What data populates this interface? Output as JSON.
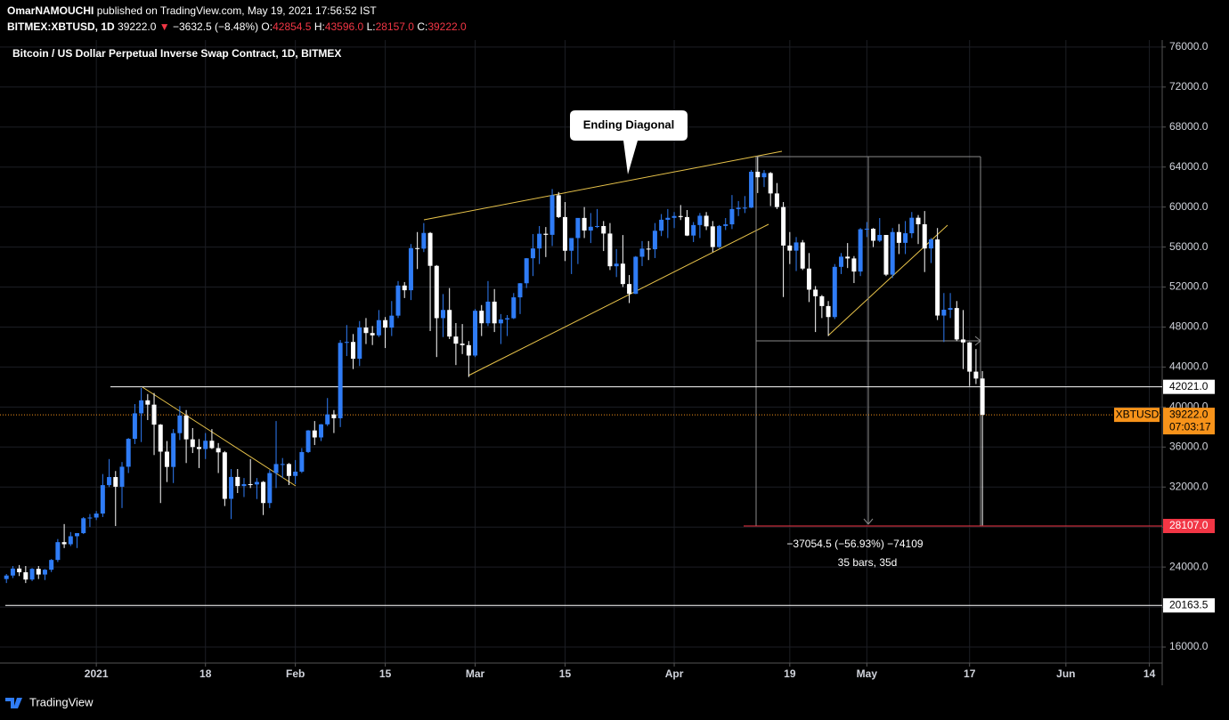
{
  "header": {
    "author": "OmarNAMOUCHI",
    "published": "published on TradingView.com, May 19, 2021 17:56:52 IST",
    "symbol": "BITMEX:XBTUSD, 1D",
    "last": "39222.0",
    "arrow": "▼",
    "change": "−3632.5 (−8.48%)",
    "o_label": "O:",
    "o_value": "42854.5",
    "h_label": "H:",
    "h_value": "43596.0",
    "l_label": "L:",
    "l_value": "28157.0",
    "c_label": "C:",
    "c_value": "39222.0"
  },
  "chart_data": {
    "type": "candlestick",
    "title": "Bitcoin / US Dollar Perpetual Inverse Swap Contract, 1D, BITMEX",
    "up_color": "#2f7cf6",
    "down_color": "#ffffff",
    "grid": true,
    "ylim": [
      14400,
      76700
    ],
    "yticks": [
      {
        "value": 16000,
        "label": "16000.0"
      },
      {
        "value": 20000,
        "label": "20000.0"
      },
      {
        "value": 24000,
        "label": "24000.0"
      },
      {
        "value": 28000,
        "label": "28000.0"
      },
      {
        "value": 32000,
        "label": "32000.0"
      },
      {
        "value": 36000,
        "label": "36000.0"
      },
      {
        "value": 40000,
        "label": "40000.0"
      },
      {
        "value": 44000,
        "label": "44000.0"
      },
      {
        "value": 48000,
        "label": "48000.0"
      },
      {
        "value": 52000,
        "label": "52000.0"
      },
      {
        "value": 56000,
        "label": "56000.0"
      },
      {
        "value": 60000,
        "label": "60000.0"
      },
      {
        "value": 64000,
        "label": "64000.0"
      },
      {
        "value": 68000,
        "label": "68000.0"
      },
      {
        "value": 72000,
        "label": "72000.0"
      },
      {
        "value": 76000,
        "label": "76000.0"
      }
    ],
    "xlim": [
      "2020-12-17",
      "2021-06-16"
    ],
    "xticks": [
      {
        "value": "2021-01-01",
        "label": "2021"
      },
      {
        "value": "2021-01-18",
        "label": "18"
      },
      {
        "value": "2021-02-01",
        "label": "Feb"
      },
      {
        "value": "2021-02-15",
        "label": "15"
      },
      {
        "value": "2021-03-01",
        "label": "Mar"
      },
      {
        "value": "2021-03-15",
        "label": "15"
      },
      {
        "value": "2021-04-01",
        "label": "Apr"
      },
      {
        "value": "2021-04-19",
        "label": "19"
      },
      {
        "value": "2021-05-01",
        "label": "May"
      },
      {
        "value": "2021-05-17",
        "label": "17"
      },
      {
        "value": "2021-06-01",
        "label": "Jun"
      },
      {
        "value": "2021-06-14",
        "label": "14"
      }
    ],
    "x": [
      "2020-12-18",
      "2020-12-19",
      "2020-12-20",
      "2020-12-21",
      "2020-12-22",
      "2020-12-23",
      "2020-12-24",
      "2020-12-25",
      "2020-12-26",
      "2020-12-27",
      "2020-12-28",
      "2020-12-29",
      "2020-12-30",
      "2020-12-31",
      "2021-01-01",
      "2021-01-02",
      "2021-01-03",
      "2021-01-04",
      "2021-01-05",
      "2021-01-06",
      "2021-01-07",
      "2021-01-08",
      "2021-01-09",
      "2021-01-10",
      "2021-01-11",
      "2021-01-12",
      "2021-01-13",
      "2021-01-14",
      "2021-01-15",
      "2021-01-16",
      "2021-01-17",
      "2021-01-18",
      "2021-01-19",
      "2021-01-20",
      "2021-01-21",
      "2021-01-22",
      "2021-01-23",
      "2021-01-24",
      "2021-01-25",
      "2021-01-26",
      "2021-01-27",
      "2021-01-28",
      "2021-01-29",
      "2021-01-30",
      "2021-01-31",
      "2021-02-01",
      "2021-02-02",
      "2021-02-03",
      "2021-02-04",
      "2021-02-05",
      "2021-02-06",
      "2021-02-07",
      "2021-02-08",
      "2021-02-09",
      "2021-02-10",
      "2021-02-11",
      "2021-02-12",
      "2021-02-13",
      "2021-02-14",
      "2021-02-15",
      "2021-02-16",
      "2021-02-17",
      "2021-02-18",
      "2021-02-19",
      "2021-02-20",
      "2021-02-21",
      "2021-02-22",
      "2021-02-23",
      "2021-02-24",
      "2021-02-25",
      "2021-02-26",
      "2021-02-27",
      "2021-02-28",
      "2021-03-01",
      "2021-03-02",
      "2021-03-03",
      "2021-03-04",
      "2021-03-05",
      "2021-03-06",
      "2021-03-07",
      "2021-03-08",
      "2021-03-09",
      "2021-03-10",
      "2021-03-11",
      "2021-03-12",
      "2021-03-13",
      "2021-03-14",
      "2021-03-15",
      "2021-03-16",
      "2021-03-17",
      "2021-03-18",
      "2021-03-19",
      "2021-03-20",
      "2021-03-21",
      "2021-03-22",
      "2021-03-23",
      "2021-03-24",
      "2021-03-25",
      "2021-03-26",
      "2021-03-27",
      "2021-03-28",
      "2021-03-29",
      "2021-03-30",
      "2021-03-31",
      "2021-04-01",
      "2021-04-02",
      "2021-04-03",
      "2021-04-04",
      "2021-04-05",
      "2021-04-06",
      "2021-04-07",
      "2021-04-08",
      "2021-04-09",
      "2021-04-10",
      "2021-04-11",
      "2021-04-12",
      "2021-04-13",
      "2021-04-14",
      "2021-04-15",
      "2021-04-16",
      "2021-04-17",
      "2021-04-18",
      "2021-04-19",
      "2021-04-20",
      "2021-04-21",
      "2021-04-22",
      "2021-04-23",
      "2021-04-24",
      "2021-04-25",
      "2021-04-26",
      "2021-04-27",
      "2021-04-28",
      "2021-04-29",
      "2021-04-30",
      "2021-05-01",
      "2021-05-02",
      "2021-05-03",
      "2021-05-04",
      "2021-05-05",
      "2021-05-06",
      "2021-05-07",
      "2021-05-08",
      "2021-05-09",
      "2021-05-10",
      "2021-05-11",
      "2021-05-12",
      "2021-05-13",
      "2021-05-14",
      "2021-05-15",
      "2021-05-16",
      "2021-05-17",
      "2021-05-18",
      "2021-05-19"
    ],
    "ohlc": [
      [
        22800,
        23300,
        22400,
        23150
      ],
      [
        23150,
        24100,
        22900,
        23850
      ],
      [
        23850,
        24200,
        23100,
        23480
      ],
      [
        23480,
        24100,
        22400,
        22750
      ],
      [
        22750,
        23900,
        22600,
        23820
      ],
      [
        23820,
        24100,
        22800,
        23250
      ],
      [
        23250,
        23800,
        22700,
        23730
      ],
      [
        23730,
        24800,
        23500,
        24710
      ],
      [
        24710,
        26800,
        24500,
        26490
      ],
      [
        26490,
        28300,
        25900,
        26280
      ],
      [
        26280,
        27500,
        26100,
        27080
      ],
      [
        27080,
        27400,
        25900,
        27390
      ],
      [
        27390,
        28999,
        27300,
        28880
      ],
      [
        28880,
        29300,
        28000,
        28950
      ],
      [
        28950,
        29600,
        28700,
        29350
      ],
      [
        29350,
        33300,
        29000,
        32190
      ],
      [
        32190,
        34800,
        32000,
        33000
      ],
      [
        33000,
        33600,
        28100,
        32030
      ],
      [
        32030,
        34500,
        29900,
        34030
      ],
      [
        34030,
        36900,
        33400,
        36820
      ],
      [
        36820,
        40300,
        36300,
        39370
      ],
      [
        39370,
        41900,
        36500,
        40670
      ],
      [
        40670,
        41300,
        38700,
        40240
      ],
      [
        40240,
        41400,
        35200,
        38240
      ],
      [
        38240,
        38300,
        30400,
        35540
      ],
      [
        35540,
        36600,
        32500,
        34010
      ],
      [
        34010,
        37800,
        32400,
        37390
      ],
      [
        37390,
        40100,
        36700,
        39150
      ],
      [
        39150,
        39700,
        34400,
        36770
      ],
      [
        36770,
        37900,
        35400,
        36000
      ],
      [
        36000,
        36800,
        33900,
        35800
      ],
      [
        35800,
        37400,
        34800,
        36630
      ],
      [
        36630,
        37800,
        35800,
        35890
      ],
      [
        35890,
        36400,
        33400,
        35470
      ],
      [
        35470,
        35600,
        30100,
        30820
      ],
      [
        30820,
        33800,
        28800,
        33010
      ],
      [
        33010,
        33800,
        31400,
        32100
      ],
      [
        32100,
        32900,
        31000,
        32290
      ],
      [
        32290,
        34800,
        31900,
        32260
      ],
      [
        32260,
        32900,
        30800,
        32510
      ],
      [
        32510,
        32600,
        29200,
        30400
      ],
      [
        30400,
        33700,
        29900,
        33400
      ],
      [
        33400,
        38600,
        31900,
        34300
      ],
      [
        34300,
        34900,
        32900,
        34300
      ],
      [
        34300,
        34400,
        32200,
        33110
      ],
      [
        33110,
        34700,
        32300,
        33540
      ],
      [
        33540,
        35900,
        33400,
        35500
      ],
      [
        35500,
        37700,
        35400,
        37660
      ],
      [
        37660,
        38600,
        36200,
        36960
      ],
      [
        36960,
        38300,
        36600,
        38270
      ],
      [
        38270,
        40900,
        38100,
        39260
      ],
      [
        39260,
        39700,
        37400,
        38880
      ],
      [
        38880,
        46700,
        38000,
        46420
      ],
      [
        46420,
        48200,
        45100,
        46510
      ],
      [
        46510,
        47300,
        43800,
        44830
      ],
      [
        44830,
        48600,
        44100,
        47950
      ],
      [
        47950,
        48900,
        46300,
        47400
      ],
      [
        47400,
        48100,
        46200,
        47170
      ],
      [
        47170,
        49700,
        47000,
        48690
      ],
      [
        48690,
        49000,
        45900,
        47940
      ],
      [
        47940,
        50600,
        47100,
        49140
      ],
      [
        49140,
        52600,
        48900,
        52150
      ],
      [
        52150,
        52500,
        50900,
        51680
      ],
      [
        51680,
        56300,
        50700,
        55890
      ],
      [
        55890,
        57500,
        53800,
        55840
      ],
      [
        55840,
        58400,
        55500,
        57410
      ],
      [
        57410,
        57500,
        47600,
        54120
      ],
      [
        54120,
        54200,
        45000,
        48890
      ],
      [
        48890,
        51300,
        47000,
        49710
      ],
      [
        49710,
        51900,
        46800,
        47050
      ],
      [
        47050,
        48400,
        44200,
        46340
      ],
      [
        46340,
        48300,
        45300,
        46190
      ],
      [
        46190,
        46600,
        43000,
        45150
      ],
      [
        45150,
        49800,
        45000,
        49630
      ],
      [
        49630,
        50200,
        47100,
        48380
      ],
      [
        48380,
        52600,
        48100,
        50540
      ],
      [
        50540,
        51800,
        47500,
        48370
      ],
      [
        48370,
        49300,
        46300,
        48760
      ],
      [
        48760,
        49200,
        47100,
        48880
      ],
      [
        48880,
        51400,
        48800,
        50970
      ],
      [
        50970,
        52400,
        49300,
        52380
      ],
      [
        52380,
        54900,
        51900,
        54880
      ],
      [
        54880,
        57300,
        53100,
        55860
      ],
      [
        55860,
        58100,
        54300,
        57330
      ],
      [
        57330,
        58000,
        55000,
        57220
      ],
      [
        57220,
        61800,
        56100,
        61180
      ],
      [
        61180,
        61500,
        58900,
        59000
      ],
      [
        59000,
        60500,
        54600,
        55630
      ],
      [
        55630,
        56900,
        53300,
        56900
      ],
      [
        56900,
        58900,
        54300,
        58910
      ],
      [
        58910,
        60000,
        56900,
        57650
      ],
      [
        57650,
        59400,
        56400,
        58030
      ],
      [
        58030,
        59800,
        57900,
        58100
      ],
      [
        58100,
        58600,
        55600,
        57350
      ],
      [
        57350,
        58400,
        53700,
        54080
      ],
      [
        54080,
        55800,
        53000,
        54340
      ],
      [
        54340,
        57200,
        52000,
        52300
      ],
      [
        52300,
        53200,
        50400,
        51320
      ],
      [
        51320,
        55100,
        51300,
        55030
      ],
      [
        55030,
        56600,
        54100,
        55840
      ],
      [
        55840,
        56600,
        54700,
        55780
      ],
      [
        55780,
        58400,
        54900,
        57630
      ],
      [
        57630,
        59300,
        57100,
        58730
      ],
      [
        58730,
        59800,
        56900,
        58920
      ],
      [
        58920,
        59500,
        57900,
        59100
      ],
      [
        59100,
        60200,
        58700,
        59000
      ],
      [
        59000,
        59700,
        57100,
        57150
      ],
      [
        57150,
        58500,
        56500,
        58200
      ],
      [
        58200,
        59400,
        56900,
        59130
      ],
      [
        59130,
        59500,
        57700,
        58070
      ],
      [
        58070,
        58600,
        55500,
        56000
      ],
      [
        56000,
        58200,
        55900,
        58110
      ],
      [
        58110,
        58900,
        57700,
        58270
      ],
      [
        58270,
        61200,
        57800,
        59800
      ],
      [
        59800,
        60600,
        59100,
        59930
      ],
      [
        59930,
        61100,
        59400,
        59940
      ],
      [
        59940,
        63700,
        59900,
        63530
      ],
      [
        63530,
        65000,
        61400,
        62980
      ],
      [
        62980,
        63700,
        62000,
        63400
      ],
      [
        63400,
        63500,
        60100,
        61360
      ],
      [
        61360,
        62400,
        59800,
        60000
      ],
      [
        60000,
        60500,
        51000,
        56150
      ],
      [
        56150,
        57500,
        54300,
        55640
      ],
      [
        55640,
        57000,
        53600,
        56460
      ],
      [
        56460,
        56700,
        53700,
        53850
      ],
      [
        53850,
        55400,
        50500,
        51740
      ],
      [
        51740,
        52100,
        47500,
        51080
      ],
      [
        51080,
        51200,
        48900,
        50100
      ],
      [
        50100,
        50600,
        47100,
        49000
      ],
      [
        49000,
        54300,
        48800,
        54020
      ],
      [
        54020,
        55400,
        53300,
        55040
      ],
      [
        55040,
        56400,
        53900,
        54860
      ],
      [
        54860,
        55100,
        52400,
        53550
      ],
      [
        53550,
        57900,
        53100,
        57780
      ],
      [
        57780,
        58500,
        57000,
        57830
      ],
      [
        57830,
        57900,
        56000,
        56630
      ],
      [
        56630,
        58900,
        56500,
        57210
      ],
      [
        57210,
        57200,
        53100,
        53240
      ],
      [
        53240,
        57900,
        52900,
        57500
      ],
      [
        57500,
        58300,
        55300,
        56420
      ],
      [
        56420,
        58600,
        55300,
        57380
      ],
      [
        57380,
        59500,
        56900,
        58930
      ],
      [
        58930,
        59200,
        56300,
        58280
      ],
      [
        58280,
        59600,
        53500,
        55860
      ],
      [
        55860,
        56900,
        54400,
        56760
      ],
      [
        56760,
        57900,
        48700,
        49150
      ],
      [
        49150,
        51400,
        46500,
        49730
      ],
      [
        49730,
        51400,
        48900,
        49900
      ],
      [
        49900,
        50600,
        46600,
        46760
      ],
      [
        46760,
        49700,
        43800,
        46460
      ],
      [
        46460,
        46500,
        42100,
        43540
      ],
      [
        43540,
        45800,
        42300,
        42850
      ],
      [
        42854.5,
        43596,
        28157,
        39222
      ]
    ],
    "hlines": [
      {
        "value": 42021,
        "label": "42021.0",
        "color": "#ffffff"
      },
      {
        "value": 20163.5,
        "label": "20163.5",
        "color": "#ffffff"
      },
      {
        "value": 28107,
        "label": "28107.0",
        "color": "#f23645"
      }
    ],
    "current_price": {
      "symbol": "XBTUSD",
      "value": 39222,
      "label": "39222.0",
      "countdown": "07:03:17",
      "color": "#f7931a"
    },
    "annotations": {
      "callout": "Ending Diagonal",
      "measure": "−37054.5 (−56.93%) −74109",
      "bars": "35 bars, 35d"
    }
  },
  "footer": {
    "logo": "TradingView"
  }
}
